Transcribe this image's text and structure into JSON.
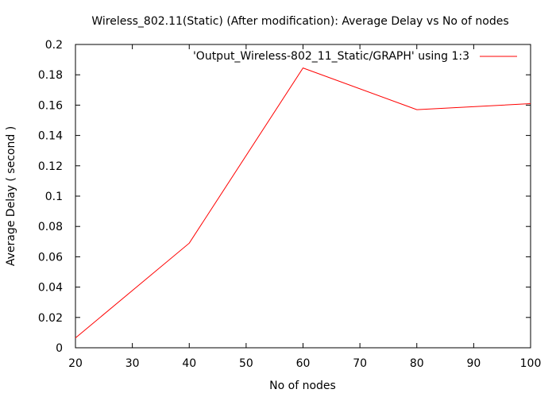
{
  "chart_data": {
    "type": "line",
    "title": "Wireless_802.11(Static) (After modification): Average Delay vs No of nodes",
    "xlabel": "No of nodes",
    "ylabel": "Average Delay ( second )",
    "xlim": [
      20,
      100
    ],
    "ylim": [
      0,
      0.2
    ],
    "x_ticks": [
      "20",
      "30",
      "40",
      "50",
      "60",
      "70",
      "80",
      "90",
      "100"
    ],
    "y_ticks": [
      "0",
      "0.02",
      "0.04",
      "0.06",
      "0.08",
      "0.1",
      "0.12",
      "0.14",
      "0.16",
      "0.18",
      "0.2"
    ],
    "grid": false,
    "legend_position": "top-right",
    "series": [
      {
        "name": "'Output_Wireless-802_11_Static/GRAPH' using 1:3",
        "color": "#ff0000",
        "x": [
          20,
          40,
          60,
          80,
          100
        ],
        "y": [
          0.0065,
          0.069,
          0.1845,
          0.157,
          0.161
        ]
      }
    ]
  }
}
